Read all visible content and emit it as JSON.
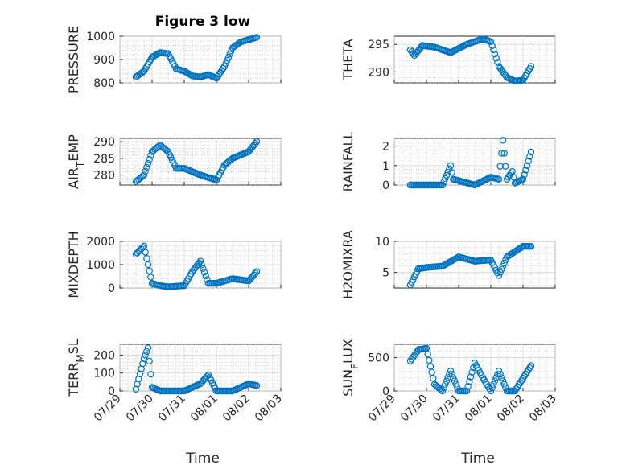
{
  "figure": {
    "title": "Figure 3 low",
    "xlabel": "Time",
    "date_ticks": [
      "07/29",
      "07/30",
      "07/31",
      "08/01",
      "08/02",
      "08/03"
    ],
    "marker_color": "#0072BD",
    "grid_color": "#b0b0b0"
  },
  "chart_data": [
    {
      "type": "scatter",
      "ylabel": "PRESSURE",
      "ylabel_sub": "",
      "ylim": [
        800,
        1000
      ],
      "yticks": [
        800,
        900,
        1000
      ],
      "x": [
        "07/29 12:00",
        "07/29 18:00",
        "07/30 00:00",
        "07/30 06:00",
        "07/30 12:00",
        "07/30 18:00",
        "07/31 00:00",
        "07/31 06:00",
        "07/31 12:00",
        "07/31 18:00",
        "08/01 00:00",
        "08/01 06:00",
        "08/01 12:00",
        "08/01 18:00",
        "08/02 00:00",
        "08/02 06:00"
      ],
      "y": [
        825,
        850,
        910,
        930,
        925,
        860,
        850,
        830,
        825,
        835,
        820,
        870,
        950,
        975,
        985,
        995
      ]
    },
    {
      "type": "scatter",
      "ylabel": "THETA",
      "ylabel_sub": "",
      "ylim": [
        288,
        296.5
      ],
      "yticks": [
        290,
        295
      ],
      "x": [
        "07/29 12:00",
        "07/29 15:00",
        "07/29 21:00",
        "07/30 06:00",
        "07/30 18:00",
        "07/31 06:00",
        "07/31 18:00",
        "08/01 00:00",
        "08/01 06:00",
        "08/01 12:00",
        "08/01 18:00",
        "08/02 00:00",
        "08/02 06:00"
      ],
      "y": [
        294,
        293,
        294.8,
        294.5,
        293.5,
        295,
        296,
        295.5,
        291,
        289,
        288.3,
        288.5,
        291
      ]
    },
    {
      "type": "scatter",
      "ylabel": "AIR",
      "ylabel_sub": "T",
      "ylabel_suffix": "EMP",
      "ylim": [
        277,
        291
      ],
      "yticks": [
        280,
        285,
        290
      ],
      "x": [
        "07/29 12:00",
        "07/29 18:00",
        "07/30 00:00",
        "07/30 06:00",
        "07/30 12:00",
        "07/30 18:00",
        "07/31 00:00",
        "07/31 12:00",
        "08/01 00:00",
        "08/01 06:00",
        "08/01 12:00",
        "08/02 00:00",
        "08/02 06:00"
      ],
      "y": [
        278,
        280,
        287,
        289,
        287,
        282,
        282,
        280,
        278.5,
        283,
        285,
        287,
        290
      ]
    },
    {
      "type": "scatter",
      "ylabel": "RAINFALL",
      "ylabel_sub": "",
      "ylim": [
        0,
        2.4
      ],
      "yticks": [
        0,
        1,
        2
      ],
      "x": [
        "07/29 12:00",
        "07/30 12:00",
        "07/30 18:00",
        "07/30 20:00",
        "07/31 12:00",
        "08/01 00:00",
        "08/01 06:00",
        "08/01 09:00",
        "08/01 12:00",
        "08/01 16:00",
        "08/01 18:00",
        "08/02 00:00",
        "08/02 06:00"
      ],
      "y": [
        0,
        0,
        1.0,
        0.3,
        0,
        0.4,
        0.3,
        2.3,
        0.3,
        0.7,
        0.1,
        0.3,
        1.7
      ]
    },
    {
      "type": "scatter",
      "ylabel": "MIXDEPTH",
      "ylabel_sub": "",
      "ylim": [
        0,
        2000
      ],
      "yticks": [
        0,
        1000,
        2000
      ],
      "x": [
        "07/29 12:00",
        "07/29 18:00",
        "07/30 00:00",
        "07/30 06:00",
        "07/30 12:00",
        "07/31 00:00",
        "07/31 06:00",
        "07/31 12:00",
        "07/31 18:00",
        "08/01 00:00",
        "08/01 12:00",
        "08/02 00:00",
        "08/02 06:00"
      ],
      "y": [
        1450,
        1800,
        200,
        100,
        50,
        100,
        700,
        1150,
        200,
        200,
        400,
        300,
        700
      ]
    },
    {
      "type": "scatter",
      "ylabel": "H2OMIXRA",
      "ylabel_sub": "",
      "ylim": [
        2.5,
        10
      ],
      "yticks": [
        5,
        10
      ],
      "x": [
        "07/29 12:00",
        "07/29 18:00",
        "07/30 00:00",
        "07/30 12:00",
        "07/31 00:00",
        "07/31 12:00",
        "08/01 00:00",
        "08/01 06:00",
        "08/01 12:00",
        "08/02 00:00",
        "08/02 06:00"
      ],
      "y": [
        3,
        5.6,
        5.8,
        6,
        7.5,
        6.8,
        7,
        4.5,
        7.5,
        9.2,
        9.2
      ]
    },
    {
      "type": "scatter",
      "ylabel": "TERR",
      "ylabel_sub": "M",
      "ylabel_suffix": "SL",
      "ylim": [
        0,
        260
      ],
      "yticks": [
        0,
        100,
        200
      ],
      "x": [
        "07/29 12:00",
        "07/29 18:00",
        "07/29 21:00",
        "07/30 00:00",
        "07/30 06:00",
        "07/31 00:00",
        "07/31 12:00",
        "07/31 18:00",
        "08/01 00:00",
        "08/01 12:00",
        "08/02 00:00",
        "08/02 06:00"
      ],
      "y": [
        10,
        180,
        240,
        20,
        0,
        0,
        40,
        90,
        0,
        0,
        40,
        30
      ]
    },
    {
      "type": "scatter",
      "ylabel": "SUN",
      "ylabel_sub": "F",
      "ylabel_suffix": "LUX",
      "ylim": [
        0,
        700
      ],
      "yticks": [
        0,
        500
      ],
      "x": [
        "07/29 12:00",
        "07/29 18:00",
        "07/30 00:00",
        "07/30 06:00",
        "07/30 12:00",
        "07/30 18:00",
        "07/31 00:00",
        "07/31 06:00",
        "07/31 12:00",
        "07/31 18:00",
        "08/01 00:00",
        "08/01 06:00",
        "08/01 12:00",
        "08/01 18:00",
        "08/02 06:00"
      ],
      "y": [
        450,
        620,
        640,
        100,
        0,
        300,
        0,
        0,
        420,
        200,
        0,
        300,
        0,
        0,
        380
      ]
    }
  ]
}
